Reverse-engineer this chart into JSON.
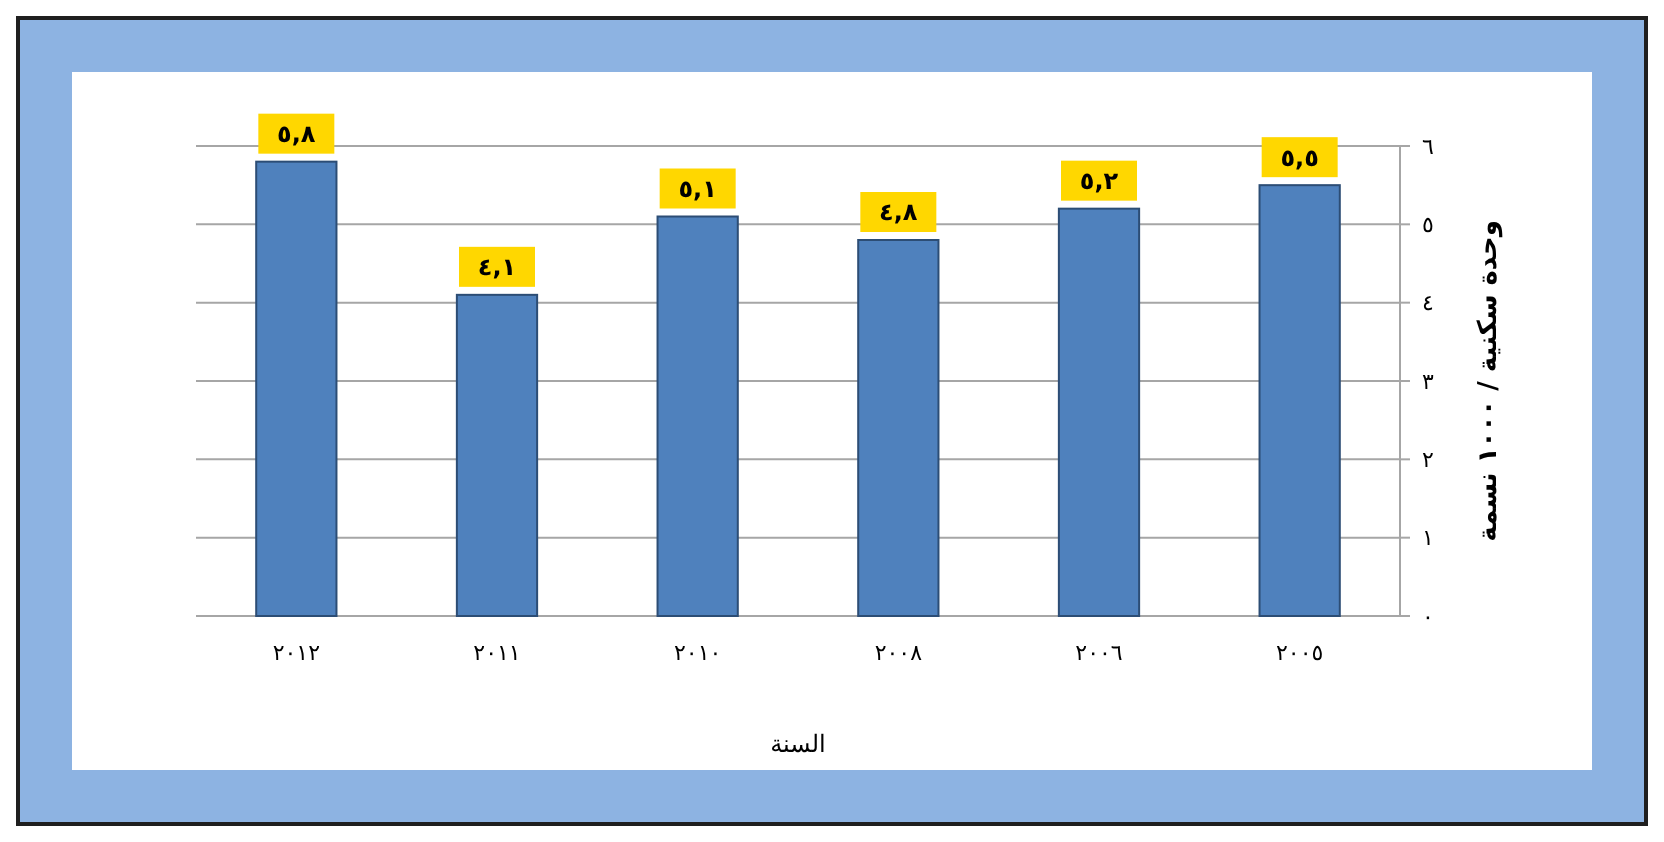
{
  "chart_data": {
    "type": "bar",
    "xlabel": "السنة",
    "ylabel": "وحدة سكنية / ١٠٠٠ نسمة",
    "categories": [
      "٢٠١٢",
      "٢٠١١",
      "٢٠١٠",
      "٢٠٠٨",
      "٢٠٠٦",
      "٢٠٠٥"
    ],
    "values": [
      5.8,
      4.1,
      5.1,
      4.8,
      5.2,
      5.5
    ],
    "value_labels": [
      "٥,٨",
      "٤,١",
      "٥,١",
      "٤,٨",
      "٥,٢",
      "٥,٥"
    ],
    "color": "#4f81bd",
    "ylim": [
      0,
      6
    ],
    "yticks": [
      {
        "value": 0,
        "label": "٠"
      },
      {
        "value": 1,
        "label": "١"
      },
      {
        "value": 2,
        "label": "٢"
      },
      {
        "value": 3,
        "label": "٣"
      },
      {
        "value": 4,
        "label": "٤"
      },
      {
        "value": 5,
        "label": "٥"
      },
      {
        "value": 6,
        "label": "٦"
      }
    ],
    "grid": "y"
  }
}
